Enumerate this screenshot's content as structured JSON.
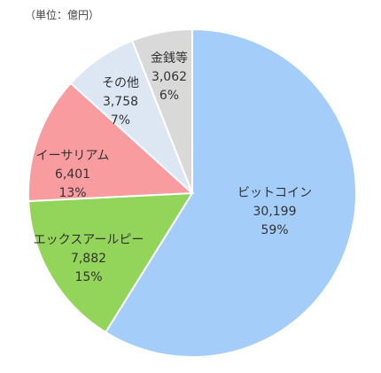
{
  "chart_data": {
    "type": "pie",
    "unit_label": "（単位：億円）",
    "start_angle_deg": 0,
    "direction": "clockwise",
    "slices": [
      {
        "label": "ビットコイン",
        "value_text": "30,199",
        "percent_text": "59%",
        "value": 30199,
        "color": "#a4cdf9"
      },
      {
        "label": "エックスアールピー",
        "value_text": "7,882",
        "percent_text": "15%",
        "value": 7882,
        "color": "#93d45a"
      },
      {
        "label": "イーサリアム",
        "value_text": "6,401",
        "percent_text": "13%",
        "value": 6401,
        "color": "#f99ca0"
      },
      {
        "label": "その他",
        "value_text": "3,758",
        "percent_text": "7%",
        "value": 3758,
        "color": "#dde7f3"
      },
      {
        "label": "金銭等",
        "value_text": "3,062",
        "percent_text": "6%",
        "value": 3062,
        "color": "#d9d9d9"
      }
    ]
  }
}
